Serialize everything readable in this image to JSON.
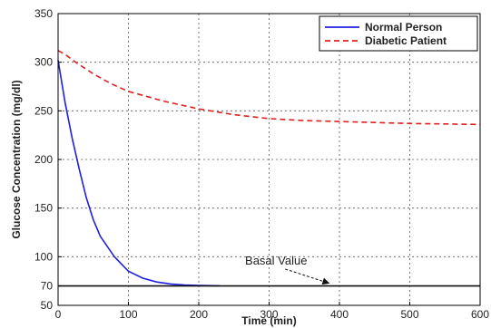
{
  "chart_data": {
    "type": "line",
    "title": "",
    "xlabel": "Time (min)",
    "ylabel": "Glucose Concentration (mg/dl)",
    "xlim": [
      0,
      600
    ],
    "ylim": [
      50,
      350
    ],
    "x_ticks": [
      0,
      100,
      200,
      300,
      400,
      500,
      600
    ],
    "y_ticks": [
      50,
      70,
      100,
      150,
      200,
      250,
      300,
      350
    ],
    "grid": true,
    "legend_position": "top-right",
    "series": [
      {
        "name": "Normal Person",
        "color": "#1f1fe0",
        "style": "solid",
        "x": [
          0,
          5,
          10,
          20,
          30,
          40,
          50,
          60,
          80,
          100,
          120,
          140,
          160,
          180,
          200,
          220,
          230
        ],
        "y": [
          302,
          280,
          258,
          222,
          190,
          161,
          138,
          121,
          100,
          85,
          78,
          74,
          72,
          71,
          70.5,
          70.2,
          70
        ]
      },
      {
        "name": "Diabetic Patient",
        "color": "#e02020",
        "style": "dashed",
        "x": [
          0,
          10,
          25,
          50,
          75,
          100,
          150,
          200,
          250,
          300,
          350,
          400,
          450,
          500,
          550,
          600
        ],
        "y": [
          312,
          308,
          300,
          288,
          278,
          270,
          260,
          252,
          246,
          242,
          240,
          239,
          238,
          237,
          236.5,
          236
        ]
      }
    ],
    "reference_line": {
      "label": "Basal Value",
      "y": 70,
      "color": "#111111"
    },
    "annotations": [
      {
        "text": "Basal Value",
        "x": 310,
        "y": 92,
        "arrow_to": [
          385,
          70
        ]
      }
    ]
  }
}
